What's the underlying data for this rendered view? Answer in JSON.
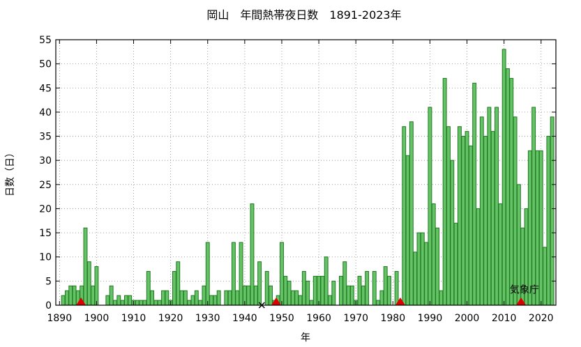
{
  "chart_data": {
    "type": "bar",
    "title": "岡山　年間熱帯夜日数　1891-2023年",
    "xlabel": "年",
    "ylabel": "日数（日）",
    "xlim": [
      1889,
      2024
    ],
    "ylim": [
      0,
      55
    ],
    "x_ticks": [
      1890,
      1900,
      1910,
      1920,
      1930,
      1940,
      1950,
      1960,
      1970,
      1980,
      1990,
      2000,
      2010,
      2020
    ],
    "y_ticks": [
      0,
      5,
      10,
      15,
      20,
      25,
      30,
      35,
      40,
      45,
      50,
      55
    ],
    "grid": true,
    "bar_color": "#66c266",
    "bar_edge_color": "#1f7a1f",
    "series": [
      {
        "x": [
          1891,
          1892,
          1893,
          1894,
          1895,
          1896,
          1897,
          1898,
          1899,
          1900,
          1901,
          1902,
          1903,
          1904,
          1905,
          1906,
          1907,
          1908,
          1909,
          1910,
          1911,
          1912,
          1913,
          1914,
          1915,
          1916,
          1917,
          1918,
          1919,
          1920,
          1921,
          1922,
          1923,
          1924,
          1925,
          1926,
          1927,
          1928,
          1929,
          1930,
          1931,
          1932,
          1933,
          1934,
          1935,
          1936,
          1937,
          1938,
          1939,
          1940,
          1941,
          1942,
          1943,
          1944,
          1945,
          1946,
          1947,
          1948,
          1949,
          1950,
          1951,
          1952,
          1953,
          1954,
          1955,
          1956,
          1957,
          1958,
          1959,
          1960,
          1961,
          1962,
          1963,
          1964,
          1965,
          1966,
          1967,
          1968,
          1969,
          1970,
          1971,
          1972,
          1973,
          1974,
          1975,
          1976,
          1977,
          1978,
          1979,
          1980,
          1981,
          1982,
          1983,
          1984,
          1985,
          1986,
          1987,
          1988,
          1989,
          1990,
          1991,
          1992,
          1993,
          1994,
          1995,
          1996,
          1997,
          1998,
          1999,
          2000,
          2001,
          2002,
          2003,
          2004,
          2005,
          2006,
          2007,
          2008,
          2009,
          2010,
          2011,
          2012,
          2013,
          2014,
          2015,
          2016,
          2017,
          2018,
          2019,
          2020,
          2021,
          2022,
          2023
        ],
        "values": [
          2,
          3,
          4,
          4,
          3,
          4,
          16,
          9,
          4,
          8,
          0,
          0,
          2,
          4,
          1,
          2,
          1,
          2,
          2,
          1,
          1,
          1,
          1,
          7,
          3,
          1,
          1,
          3,
          3,
          1,
          7,
          9,
          3,
          3,
          1,
          2,
          3,
          1,
          4,
          13,
          2,
          2,
          3,
          0,
          3,
          3,
          13,
          3,
          13,
          4,
          4,
          21,
          4,
          9,
          0,
          7,
          4,
          1,
          2,
          13,
          6,
          5,
          3,
          3,
          2,
          7,
          5,
          1,
          6,
          6,
          6,
          10,
          2,
          5,
          0,
          6,
          9,
          4,
          4,
          1,
          6,
          4,
          7,
          0,
          7,
          1,
          3,
          8,
          6,
          0,
          7,
          0,
          37,
          31,
          38,
          11,
          15,
          15,
          13,
          41,
          21,
          16,
          3,
          47,
          37,
          30,
          17,
          37,
          35,
          36,
          33,
          46,
          20,
          39,
          35,
          41,
          36,
          41,
          21,
          53,
          49,
          47,
          39,
          25,
          16,
          20,
          32,
          41,
          32,
          32,
          12,
          35,
          39
        ]
      }
    ],
    "markers": [
      {
        "type": "station-move",
        "symbol": "triangle",
        "color": "#dd0000",
        "x": 1895.8
      },
      {
        "type": "station-move",
        "symbol": "triangle",
        "color": "#dd0000",
        "x": 1948.5
      },
      {
        "type": "station-move",
        "symbol": "triangle",
        "color": "#dd0000",
        "x": 1982.0
      },
      {
        "type": "station-move",
        "symbol": "triangle",
        "color": "#dd0000",
        "x": 2014.6
      },
      {
        "type": "missing",
        "symbol": "cross",
        "color": "#000000",
        "x": 1944.6
      }
    ],
    "annotation": {
      "text": "気象庁",
      "x": 2015.5,
      "y": 2.5
    }
  }
}
